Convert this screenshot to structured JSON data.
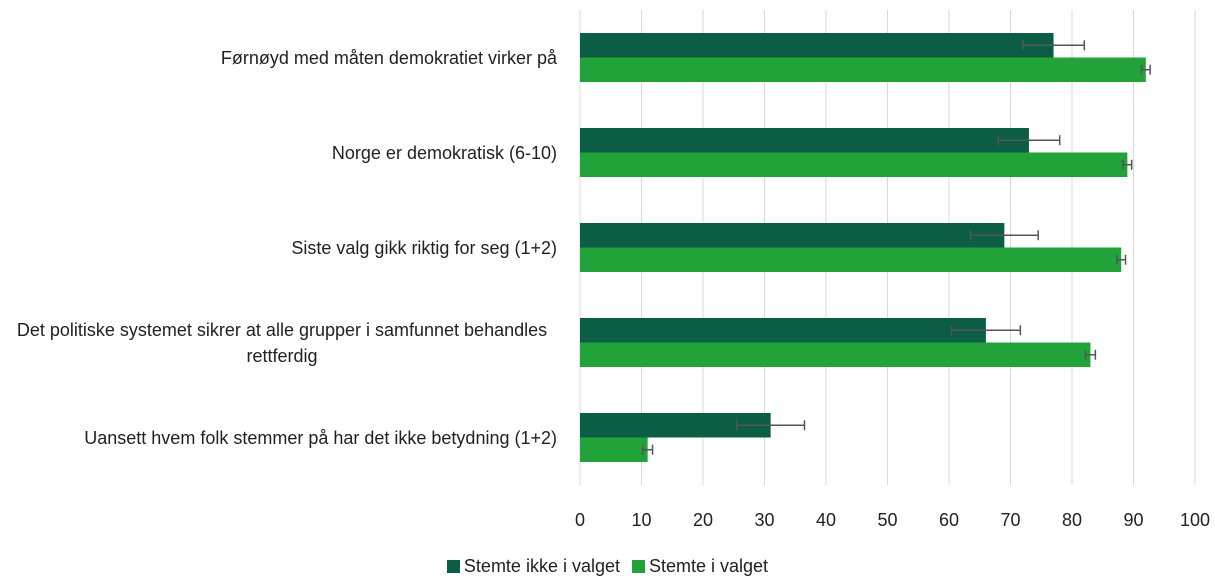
{
  "chart_data": {
    "type": "bar",
    "orientation": "horizontal",
    "categories": [
      "Førnøyd med måten demokratiet virker på",
      "Norge er demokratisk (6-10)",
      "Siste valg gikk riktig for seg (1+2)",
      "Det politiske systemet sikrer at alle grupper i samfunnet behandles rettferdig",
      "Uansett hvem folk stemmer på har det ikke betydning (1+2)"
    ],
    "series": [
      {
        "name": "Stemte ikke i valget",
        "color": "#0b5e45",
        "values": [
          77,
          73,
          69,
          66,
          31
        ],
        "errors": [
          5,
          5,
          5.5,
          5.6,
          5.5
        ]
      },
      {
        "name": "Stemte i valget",
        "color": "#22a33a",
        "values": [
          92,
          89,
          88,
          83,
          11
        ],
        "errors": [
          0.7,
          0.7,
          0.7,
          0.8,
          0.8
        ]
      }
    ],
    "xlim": [
      0,
      100
    ],
    "xticks": [
      0,
      10,
      20,
      30,
      40,
      50,
      60,
      70,
      80,
      90,
      100
    ],
    "grid": true,
    "legend": "bottom"
  }
}
